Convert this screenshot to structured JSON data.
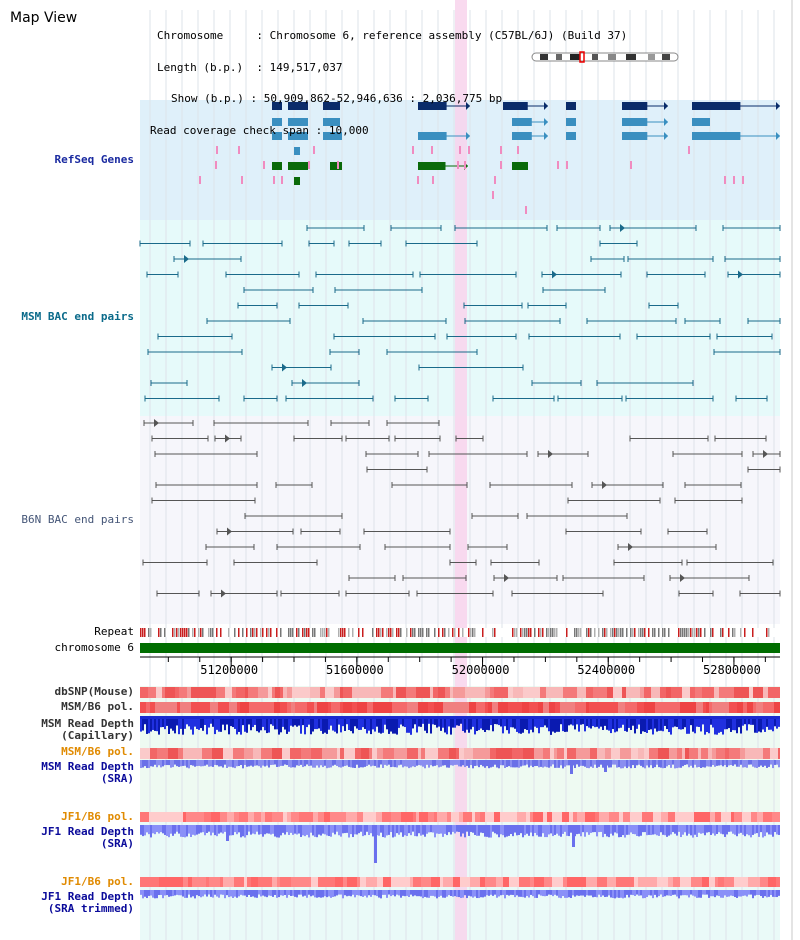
{
  "view": {
    "title": "Map View"
  },
  "info": {
    "chromosome_key": "Chromosome",
    "chromosome_val": "Chromosome 6, reference assembly (C57BL/6J) (Build 37)",
    "length_key": "Length (b.p.)",
    "length_val": "149,517,037",
    "show_key": "Show (b.p.)",
    "show_val": "50,909,862-52,946,636 : 2,036,775 bp",
    "span_key": "Read coverage check span",
    "span_val": "10,000"
  },
  "tracks": {
    "refseq": "RefSeq Genes",
    "msm_bac": "MSM BAC end pairs",
    "b6n_bac": "B6N BAC end pairs",
    "repeat": "Repeat",
    "chromosome": "chromosome 6",
    "dbsnp": "dbSNP(Mouse)",
    "msm_pol": "MSM/B6 pol.",
    "msm_depth_cap_1": "MSM Read Depth",
    "msm_depth_cap_2": "(Capillary)",
    "msm_pol2": "MSM/B6 pol.",
    "msm_depth_sra_1": "MSM Read Depth",
    "msm_depth_sra_2": "(SRA)",
    "jf1_pol": "JF1/B6 pol.",
    "jf1_depth_sra_1": "JF1 Read Depth",
    "jf1_depth_sra_2": "(SRA)",
    "jf1_pol2": "JF1/B6 pol.",
    "jf1_depth_trim_1": "JF1 Read Depth",
    "jf1_depth_trim_2": "(SRA trimmed)"
  },
  "axis": {
    "ticks": [
      "51200000",
      "51600000",
      "52000000",
      "52400000",
      "52800000"
    ],
    "tick_values": [
      51200000,
      51600000,
      52000000,
      52400000,
      52800000
    ],
    "start": 50909862,
    "end": 52946636
  },
  "colors": {
    "refseq_bg": "#dff0fa",
    "msm_bg": "#e6fafa",
    "b6n_bg": "#f6f6fb",
    "chromosome": "#006d00",
    "gene_dark": "#0a2c6a",
    "gene_mid": "#3a8fc0",
    "gene_green": "#0a6a0a",
    "msm_label": "#0a6a8a",
    "b6n_label": "#445577",
    "refseq_label": "#1a2aa0",
    "highlight": "#f8d4ec",
    "pol_label": "#e08a00",
    "depth_label": "#0a0a9a"
  }
}
